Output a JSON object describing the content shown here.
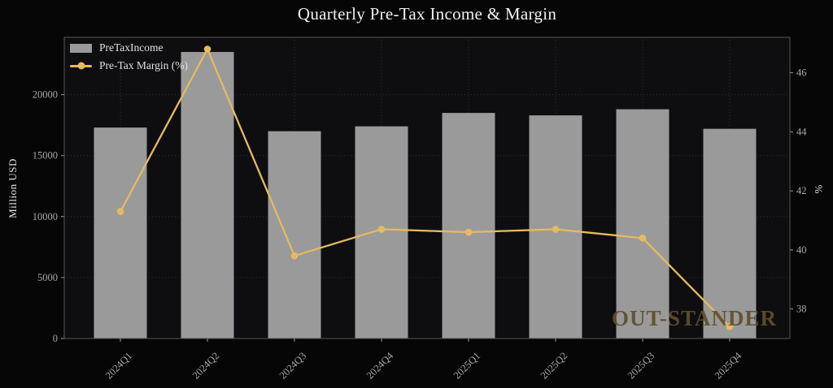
{
  "title": "Quarterly Pre-Tax Income & Margin",
  "watermark": "OUT-STANDER",
  "chart_data": {
    "type": "bar",
    "combo": "bar+line dual-axis",
    "categories": [
      "2024Q1",
      "2024Q2",
      "2024Q3",
      "2024Q4",
      "2025Q1",
      "2025Q2",
      "2025Q3",
      "2025Q4"
    ],
    "series": [
      {
        "name": "PreTaxIncome",
        "type": "bar",
        "axis": "left",
        "unit": "Million USD",
        "values": [
          17300,
          23500,
          17000,
          17400,
          18500,
          18300,
          18800,
          17200
        ],
        "color": "#9a9a9a"
      },
      {
        "name": "Pre-Tax Margin (%)",
        "type": "line",
        "axis": "right",
        "unit": "%",
        "values": [
          41.3,
          46.8,
          39.8,
          40.7,
          40.6,
          40.7,
          40.4,
          37.4
        ],
        "color": "#e5ba61"
      }
    ],
    "title": "Quarterly Pre-Tax Income & Margin",
    "xlabel": "",
    "ylabel_left": "Million USD",
    "ylabel_right": "%",
    "yticks_left": [
      0,
      5000,
      10000,
      15000,
      20000
    ],
    "yticks_right": [
      38,
      40,
      42,
      44,
      46
    ],
    "ylim_left": [
      0,
      24700
    ],
    "ylim_right": [
      37.0,
      47.2
    ],
    "grid": "dotted; horizontal at left-axis ticks, vertical at each category",
    "legend_position": "upper left"
  },
  "colors": {
    "figure_bg": "#060607",
    "plot_bg": "#0e0e11",
    "bar": "#9a9a9a",
    "line": "#e5ba61",
    "grid": "#303034",
    "spine": "#565656",
    "tick": "#9a9a9a",
    "tick_label": "#a9a9a9",
    "axis_label": "#e3e3e3",
    "title": "#f2f2f2",
    "watermark": "rgba(96,78,43,0.92)"
  }
}
